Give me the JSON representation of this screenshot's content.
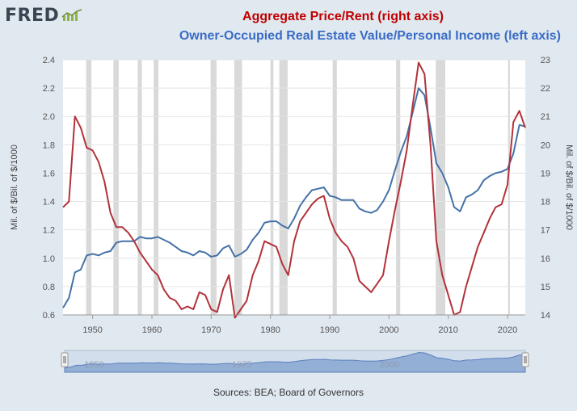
{
  "logo": {
    "text": "FRED"
  },
  "titles": {
    "right_series": "Aggregate Price/Rent (right axis)",
    "left_series": "Owner-Occupied Real Estate Value/Personal Income (left axis)"
  },
  "source": "Sources: BEA; Board of Governors",
  "colors": {
    "left_series": "#4572a7",
    "right_series": "#b2323b",
    "recession": "#cfcfcf",
    "background": "#e1e9f0"
  },
  "chart_data": {
    "type": "line",
    "ylabel_left": "Mil. of $/Bil. of $/1000",
    "ylabel_right": "Mil. of $/Bil. of $/1000",
    "xlim": [
      1945,
      2023
    ],
    "ylim_left": [
      0.6,
      2.4
    ],
    "ylim_right": [
      14,
      23
    ],
    "x_ticks": [
      "1950",
      "1960",
      "1970",
      "1980",
      "1990",
      "2000",
      "2010",
      "2020"
    ],
    "y_ticks_left": [
      "0.6",
      "0.8",
      "1.0",
      "1.2",
      "1.4",
      "1.6",
      "1.8",
      "2.0",
      "2.2",
      "2.4"
    ],
    "y_ticks_right": [
      "14",
      "15",
      "16",
      "17",
      "18",
      "19",
      "20",
      "21",
      "22",
      "23"
    ],
    "navigator_labels": [
      "1950",
      "1975",
      "2000"
    ],
    "recessions": [
      [
        1948.9,
        1949.8
      ],
      [
        1953.5,
        1954.4
      ],
      [
        1957.6,
        1958.3
      ],
      [
        1960.3,
        1961.1
      ],
      [
        1969.9,
        1970.9
      ],
      [
        1973.9,
        1975.2
      ],
      [
        1980.0,
        1980.5
      ],
      [
        1981.5,
        1982.9
      ],
      [
        1990.5,
        1991.2
      ],
      [
        2001.2,
        2001.9
      ],
      [
        2007.9,
        2009.5
      ],
      [
        2020.1,
        2020.4
      ]
    ],
    "series": [
      {
        "name": "Owner-Occupied Real Estate Value/Personal Income",
        "axis": "left",
        "x": [
          1945,
          1946,
          1947,
          1948,
          1949,
          1950,
          1951,
          1952,
          1953,
          1954,
          1955,
          1956,
          1957,
          1958,
          1959,
          1960,
          1961,
          1962,
          1963,
          1964,
          1965,
          1966,
          1967,
          1968,
          1969,
          1970,
          1971,
          1972,
          1973,
          1974,
          1975,
          1976,
          1977,
          1978,
          1979,
          1980,
          1981,
          1982,
          1983,
          1984,
          1985,
          1986,
          1987,
          1988,
          1989,
          1990,
          1991,
          1992,
          1993,
          1994,
          1995,
          1996,
          1997,
          1998,
          1999,
          2000,
          2001,
          2002,
          2003,
          2004,
          2005,
          2006,
          2007,
          2008,
          2009,
          2010,
          2011,
          2012,
          2013,
          2014,
          2015,
          2016,
          2017,
          2018,
          2019,
          2020,
          2021,
          2022,
          2023
        ],
        "values": [
          0.65,
          0.72,
          0.9,
          0.92,
          1.02,
          1.03,
          1.02,
          1.04,
          1.05,
          1.11,
          1.12,
          1.12,
          1.12,
          1.15,
          1.14,
          1.14,
          1.15,
          1.13,
          1.11,
          1.08,
          1.05,
          1.04,
          1.02,
          1.05,
          1.04,
          1.01,
          1.02,
          1.07,
          1.09,
          1.01,
          1.03,
          1.06,
          1.13,
          1.18,
          1.25,
          1.26,
          1.26,
          1.23,
          1.21,
          1.28,
          1.37,
          1.43,
          1.48,
          1.49,
          1.5,
          1.44,
          1.43,
          1.41,
          1.41,
          1.41,
          1.35,
          1.33,
          1.32,
          1.34,
          1.4,
          1.48,
          1.62,
          1.75,
          1.86,
          2.03,
          2.2,
          2.15,
          1.92,
          1.67,
          1.6,
          1.5,
          1.36,
          1.33,
          1.43,
          1.45,
          1.48,
          1.55,
          1.58,
          1.6,
          1.61,
          1.63,
          1.74,
          1.94,
          1.93
        ]
      },
      {
        "name": "Aggregate Price/Rent",
        "axis": "right",
        "x": [
          1945,
          1946,
          1947,
          1948,
          1949,
          1950,
          1951,
          1952,
          1953,
          1954,
          1955,
          1956,
          1957,
          1958,
          1959,
          1960,
          1961,
          1962,
          1963,
          1964,
          1965,
          1966,
          1967,
          1968,
          1969,
          1970,
          1971,
          1972,
          1973,
          1974,
          1975,
          1976,
          1977,
          1978,
          1979,
          1980,
          1981,
          1982,
          1983,
          1984,
          1985,
          1986,
          1987,
          1988,
          1989,
          1990,
          1991,
          1992,
          1993,
          1994,
          1995,
          1996,
          1997,
          1998,
          1999,
          2000,
          2001,
          2002,
          2003,
          2004,
          2005,
          2006,
          2007,
          2008,
          2009,
          2010,
          2011,
          2012,
          2013,
          2014,
          2015,
          2016,
          2017,
          2018,
          2019,
          2020,
          2021,
          2022,
          2023
        ],
        "values": [
          17.8,
          18.0,
          21.0,
          20.6,
          19.9,
          19.8,
          19.4,
          18.7,
          17.6,
          17.1,
          17.1,
          16.9,
          16.6,
          16.2,
          15.9,
          15.6,
          15.4,
          14.9,
          14.6,
          14.5,
          14.2,
          14.3,
          14.2,
          14.8,
          14.7,
          14.2,
          14.1,
          14.9,
          15.4,
          13.9,
          14.2,
          14.5,
          15.4,
          15.9,
          16.6,
          16.5,
          16.4,
          15.8,
          15.4,
          16.6,
          17.3,
          17.6,
          17.9,
          18.1,
          18.2,
          17.4,
          16.9,
          16.6,
          16.4,
          16.0,
          15.2,
          15.0,
          14.8,
          15.1,
          15.4,
          16.6,
          17.7,
          18.7,
          19.8,
          21.4,
          22.9,
          22.5,
          20.0,
          16.6,
          15.4,
          14.7,
          14.0,
          14.1,
          15.0,
          15.7,
          16.4,
          16.9,
          17.4,
          17.8,
          17.9,
          18.6,
          20.8,
          21.2,
          20.6
        ]
      }
    ]
  }
}
